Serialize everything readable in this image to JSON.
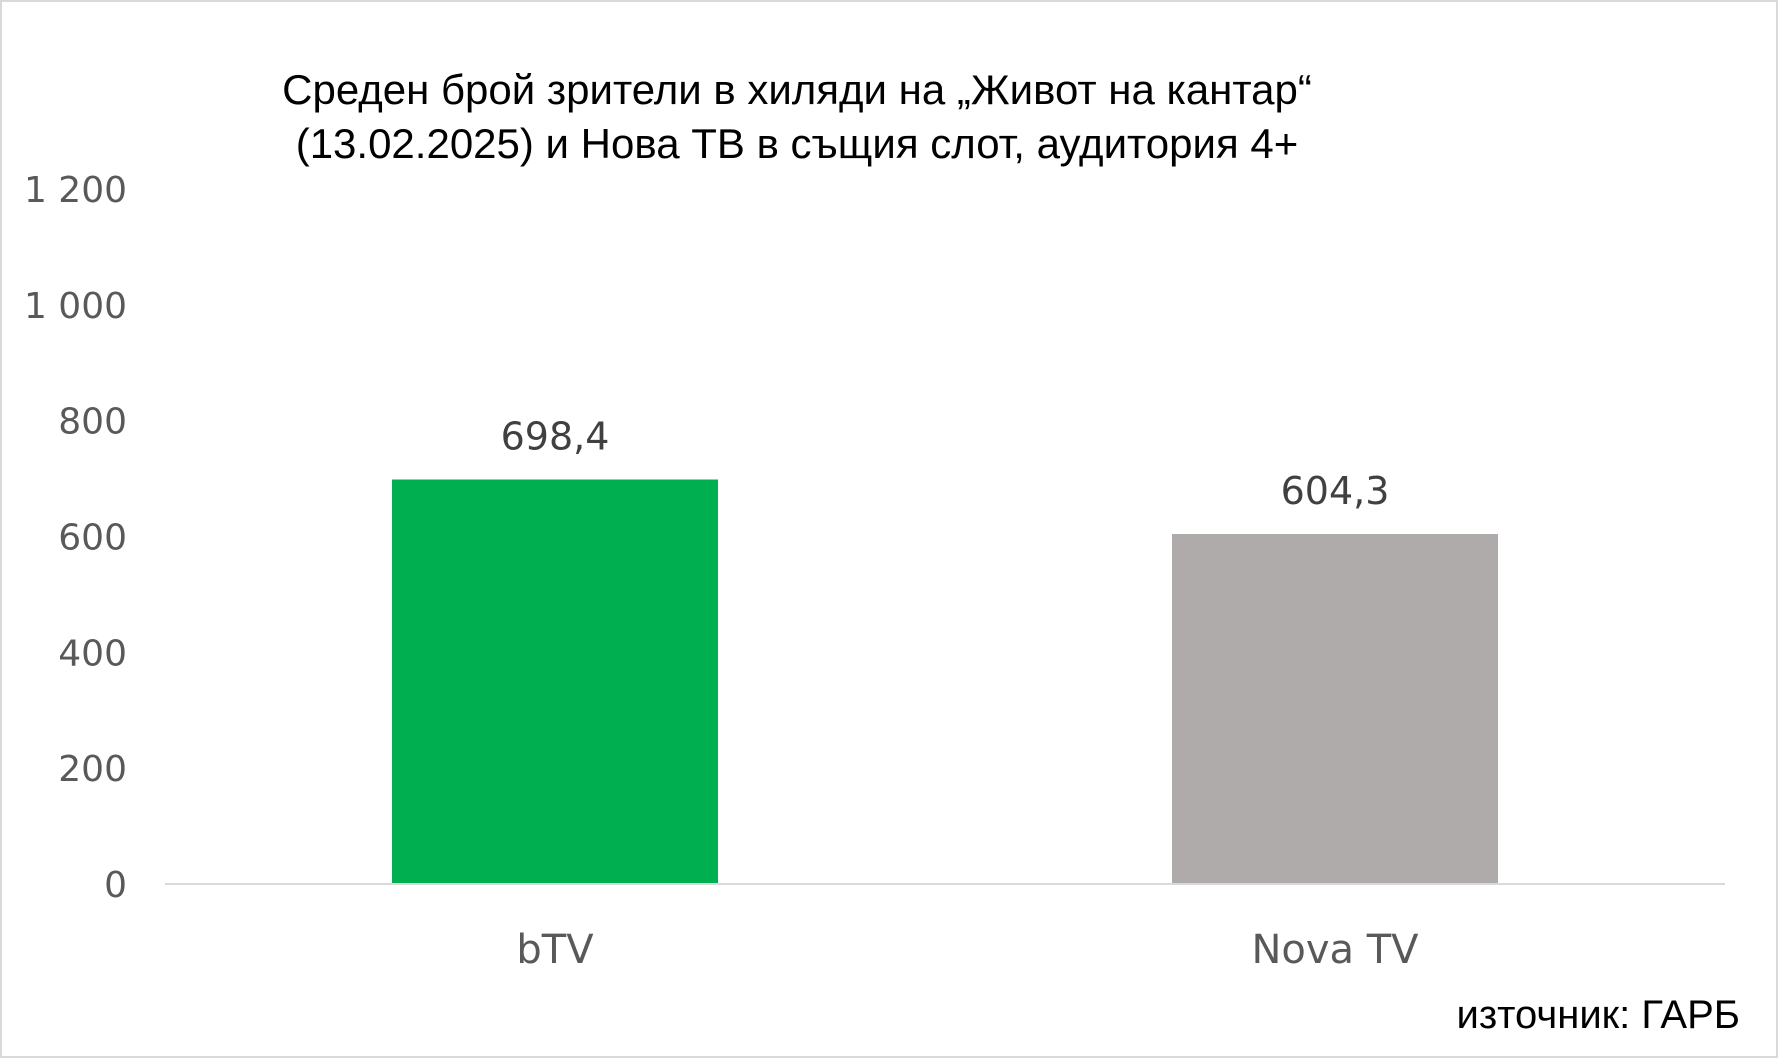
{
  "chart_data": {
    "type": "bar",
    "title_lines": [
      "Среден брой зрители в хиляди на „Живот на кантар“",
      "(13.02.2025) и Нова ТВ в същия слот, аудитория 4+"
    ],
    "categories": [
      "bTV",
      "Nova TV"
    ],
    "values": [
      698.4,
      604.3
    ],
    "value_labels": [
      "698,4",
      "604,3"
    ],
    "bar_colors": [
      "#00b050",
      "#afabab"
    ],
    "y_ticks": [
      0,
      200,
      400,
      600,
      800,
      1000,
      1200
    ],
    "y_tick_labels": [
      "0",
      "200",
      "400",
      "600",
      "800",
      "1 000",
      "1 200"
    ],
    "ylim": [
      0,
      1200
    ],
    "grid": false,
    "legend": "none"
  },
  "source": "източник: ГАРБ"
}
